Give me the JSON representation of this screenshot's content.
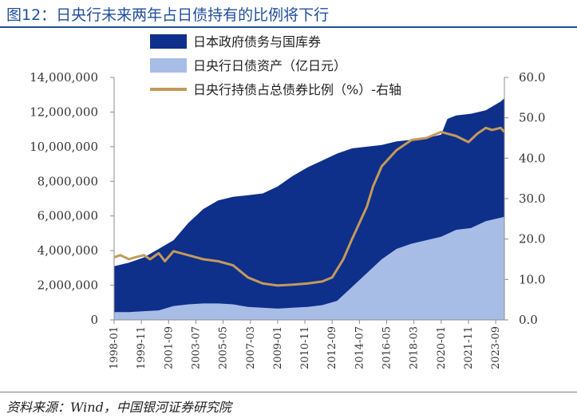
{
  "header": {
    "title": "图12：日央行未来两年占日债持有的比例将下行"
  },
  "footer": {
    "source": "资料来源：Wind，中国银河证券研究院"
  },
  "colors": {
    "total": "#0e2f8a",
    "boj": "#a8bde6",
    "ratio": "#c49a5a",
    "title": "#1f4e9c"
  },
  "chart_data": {
    "type": "area",
    "x_tick_labels": [
      "1998-01",
      "1999-11",
      "2001-09",
      "2003-07",
      "2005-05",
      "2007-03",
      "2009-01",
      "2010-11",
      "2012-09",
      "2014-07",
      "2016-05",
      "2018-03",
      "2020-01",
      "2021-11",
      "2023-09"
    ],
    "x_range": [
      "1998-01",
      "2024-04"
    ],
    "y_left": {
      "ticks": [
        "0",
        "2,000,000",
        "4,000,000",
        "6,000,000",
        "8,000,000",
        "10,000,000",
        "12,000,000",
        "14,000,000"
      ],
      "range": [
        0,
        14000000
      ]
    },
    "y_right": {
      "ticks": [
        "0.0",
        "10.0",
        "20.0",
        "30.0",
        "40.0",
        "50.0",
        "60.0"
      ],
      "range": [
        0,
        60
      ],
      "label": ""
    },
    "legend_position": "top-center",
    "series": [
      {
        "name": "日本政府债务与国库券",
        "type": "area",
        "axis": "left",
        "points": [
          [
            "1998-01",
            3100000
          ],
          [
            "1999-01",
            3300000
          ],
          [
            "2000-01",
            3600000
          ],
          [
            "2001-01",
            4100000
          ],
          [
            "2002-01",
            4600000
          ],
          [
            "2003-01",
            5600000
          ],
          [
            "2004-01",
            6400000
          ],
          [
            "2005-01",
            6900000
          ],
          [
            "2006-01",
            7100000
          ],
          [
            "2007-01",
            7200000
          ],
          [
            "2008-01",
            7300000
          ],
          [
            "2009-01",
            7700000
          ],
          [
            "2010-01",
            8300000
          ],
          [
            "2011-01",
            8800000
          ],
          [
            "2012-01",
            9200000
          ],
          [
            "2013-01",
            9600000
          ],
          [
            "2014-01",
            9900000
          ],
          [
            "2015-01",
            10000000
          ],
          [
            "2016-01",
            10100000
          ],
          [
            "2017-01",
            10300000
          ],
          [
            "2018-01",
            10400000
          ],
          [
            "2019-01",
            10500000
          ],
          [
            "2020-01",
            10700000
          ],
          [
            "2020-06",
            11600000
          ],
          [
            "2021-01",
            11800000
          ],
          [
            "2022-01",
            11900000
          ],
          [
            "2023-01",
            12100000
          ],
          [
            "2024-01",
            12600000
          ],
          [
            "2024-04",
            12800000
          ]
        ]
      },
      {
        "name": "日央行日债资产（亿日元）",
        "type": "area",
        "axis": "left",
        "points": [
          [
            "1998-01",
            450000
          ],
          [
            "1999-01",
            450000
          ],
          [
            "2000-01",
            500000
          ],
          [
            "2001-01",
            550000
          ],
          [
            "2002-01",
            800000
          ],
          [
            "2003-01",
            900000
          ],
          [
            "2004-01",
            950000
          ],
          [
            "2005-01",
            950000
          ],
          [
            "2006-01",
            900000
          ],
          [
            "2007-01",
            750000
          ],
          [
            "2008-01",
            700000
          ],
          [
            "2009-01",
            650000
          ],
          [
            "2010-01",
            700000
          ],
          [
            "2011-01",
            750000
          ],
          [
            "2012-01",
            850000
          ],
          [
            "2013-01",
            1100000
          ],
          [
            "2014-01",
            1900000
          ],
          [
            "2015-01",
            2700000
          ],
          [
            "2016-01",
            3500000
          ],
          [
            "2017-01",
            4100000
          ],
          [
            "2018-01",
            4400000
          ],
          [
            "2019-01",
            4600000
          ],
          [
            "2020-01",
            4800000
          ],
          [
            "2021-01",
            5200000
          ],
          [
            "2022-01",
            5300000
          ],
          [
            "2023-01",
            5700000
          ],
          [
            "2024-01",
            5900000
          ],
          [
            "2024-04",
            5950000
          ]
        ]
      },
      {
        "name": "日央行持债占总债券比例（%）-右轴",
        "type": "line",
        "axis": "right",
        "points": [
          [
            "1998-01",
            15.5
          ],
          [
            "1998-06",
            16.0
          ],
          [
            "1999-01",
            15.0
          ],
          [
            "1999-06",
            15.5
          ],
          [
            "2000-01",
            16.0
          ],
          [
            "2000-06",
            15.0
          ],
          [
            "2001-01",
            16.5
          ],
          [
            "2001-06",
            14.5
          ],
          [
            "2002-01",
            17.0
          ],
          [
            "2003-01",
            16.0
          ],
          [
            "2004-01",
            15.0
          ],
          [
            "2005-01",
            14.5
          ],
          [
            "2006-01",
            13.5
          ],
          [
            "2007-01",
            10.5
          ],
          [
            "2008-01",
            9.0
          ],
          [
            "2009-01",
            8.5
          ],
          [
            "2010-01",
            8.7
          ],
          [
            "2011-01",
            9.0
          ],
          [
            "2012-01",
            9.5
          ],
          [
            "2012-09",
            10.5
          ],
          [
            "2013-06",
            15.0
          ],
          [
            "2014-01",
            20.0
          ],
          [
            "2015-01",
            28.0
          ],
          [
            "2015-06",
            33.0
          ],
          [
            "2016-01",
            38.0
          ],
          [
            "2017-01",
            42.0
          ],
          [
            "2018-01",
            44.5
          ],
          [
            "2019-01",
            45.0
          ],
          [
            "2020-01",
            46.5
          ],
          [
            "2021-01",
            45.5
          ],
          [
            "2021-11",
            44.0
          ],
          [
            "2022-06",
            46.0
          ],
          [
            "2023-01",
            47.5
          ],
          [
            "2023-06",
            47.0
          ],
          [
            "2024-01",
            47.5
          ],
          [
            "2024-04",
            46.5
          ]
        ]
      }
    ]
  }
}
